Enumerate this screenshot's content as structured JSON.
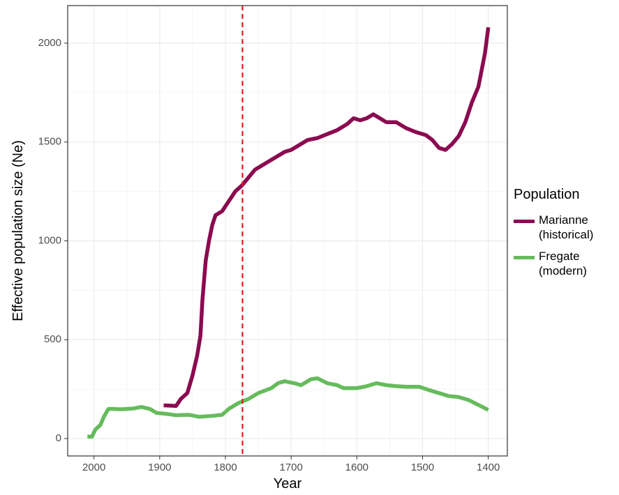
{
  "chart_data": {
    "type": "line",
    "xlabel": "Year",
    "ylabel": "Effective population size (Ne)",
    "legend_title": "Population",
    "xlim": [
      2040,
      1371
    ],
    "ylim": [
      -88,
      2190
    ],
    "xticks": [
      2000,
      1900,
      1800,
      1700,
      1600,
      1500,
      1400
    ],
    "yticks": [
      0,
      500,
      1000,
      1500,
      2000
    ],
    "grid": true,
    "legend": "right",
    "vline": {
      "x": 1774,
      "color": "#e41a1c"
    },
    "series": [
      {
        "name": "Marianne (historical)",
        "color": "#8b0a50",
        "x": [
          1894,
          1875,
          1868,
          1858,
          1850,
          1843,
          1838,
          1835,
          1830,
          1825,
          1820,
          1815,
          1805,
          1795,
          1785,
          1775,
          1765,
          1755,
          1740,
          1725,
          1710,
          1700,
          1690,
          1675,
          1660,
          1645,
          1630,
          1615,
          1605,
          1595,
          1585,
          1575,
          1565,
          1555,
          1540,
          1525,
          1510,
          1495,
          1485,
          1475,
          1465,
          1455,
          1445,
          1435,
          1425,
          1415,
          1405,
          1400
        ],
        "values": [
          168,
          165,
          200,
          230,
          320,
          420,
          520,
          700,
          900,
          1000,
          1080,
          1130,
          1150,
          1200,
          1250,
          1280,
          1320,
          1360,
          1390,
          1420,
          1450,
          1460,
          1480,
          1510,
          1520,
          1540,
          1560,
          1590,
          1620,
          1610,
          1620,
          1640,
          1620,
          1600,
          1600,
          1570,
          1550,
          1535,
          1510,
          1470,
          1460,
          1490,
          1530,
          1600,
          1700,
          1780,
          1950,
          2080
        ]
      },
      {
        "name": "Fregate (modern)",
        "color": "#66bb5c",
        "x": [
          2010,
          2003,
          1998,
          1990,
          1985,
          1978,
          1970,
          1960,
          1950,
          1940,
          1928,
          1915,
          1905,
          1890,
          1875,
          1855,
          1840,
          1820,
          1805,
          1795,
          1780,
          1765,
          1750,
          1730,
          1720,
          1710,
          1695,
          1685,
          1670,
          1660,
          1645,
          1630,
          1620,
          1600,
          1585,
          1570,
          1555,
          1540,
          1525,
          1505,
          1490,
          1475,
          1460,
          1445,
          1430,
          1415,
          1400
        ],
        "values": [
          10,
          10,
          45,
          70,
          110,
          150,
          150,
          148,
          150,
          152,
          160,
          150,
          130,
          125,
          118,
          120,
          110,
          115,
          120,
          150,
          180,
          200,
          230,
          255,
          280,
          290,
          280,
          270,
          300,
          305,
          280,
          270,
          255,
          255,
          265,
          280,
          270,
          265,
          262,
          262,
          245,
          230,
          215,
          210,
          195,
          170,
          145
        ]
      }
    ]
  }
}
